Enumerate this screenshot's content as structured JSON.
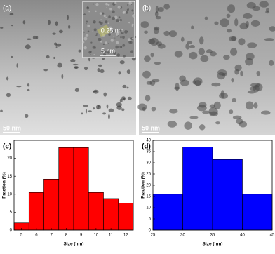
{
  "panels": [
    {
      "label": "(a)",
      "scale_bar": "50 nm",
      "inset_labels": [
        "0.25 nm",
        "5 nm"
      ]
    },
    {
      "label": "(b)",
      "scale_bar": "50 nm"
    }
  ],
  "chart_data": [
    {
      "type": "histogram",
      "panel_label": "(c)",
      "x_label": "Size (nm)",
      "y_label": "Fraction (%)",
      "color": "#ff0000",
      "bins": [
        4.5,
        5.5,
        6.5,
        7.5,
        8.5,
        9.5,
        10.5,
        11.5,
        12.5
      ],
      "values": [
        2,
        10.5,
        14.2,
        23,
        23,
        10.5,
        8.8,
        7.5
      ],
      "xlim": [
        4.5,
        12.5
      ],
      "xticks": [
        5,
        6,
        7,
        8,
        9,
        10,
        11,
        12
      ],
      "ylim": [
        0,
        25
      ],
      "yticks": [
        0,
        5,
        10,
        15,
        20
      ]
    },
    {
      "type": "histogram",
      "panel_label": "(d)",
      "x_label": "Size (nm)",
      "y_label": "Fraction (%)",
      "color": "#0000ff",
      "bins": [
        25,
        30,
        35,
        40,
        45
      ],
      "values": [
        16,
        37,
        31.5,
        16
      ],
      "xlim": [
        25,
        45
      ],
      "xticks": [
        25,
        30,
        35,
        40,
        45
      ],
      "ylim": [
        0,
        40
      ],
      "yticks": [
        0,
        5,
        10,
        15,
        20,
        25,
        30,
        35,
        40
      ]
    }
  ]
}
